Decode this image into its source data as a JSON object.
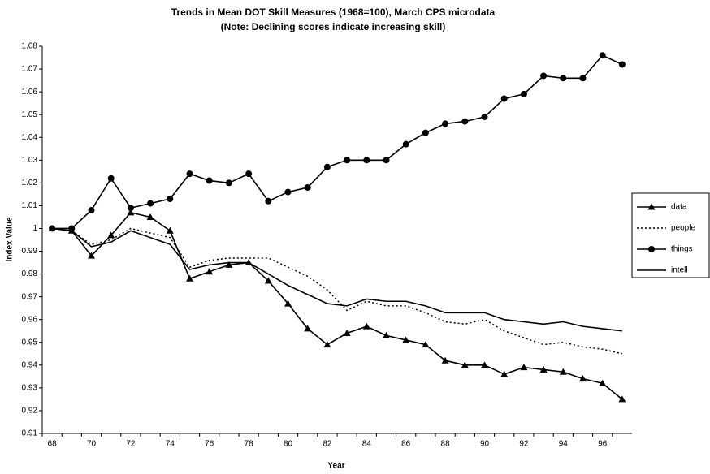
{
  "chart_data": {
    "type": "line",
    "title": "Trends in Mean DOT Skill Measures (1968=100), March CPS microdata",
    "subtitle": "(Note: Declining scores indicate increasing skill)",
    "y_label": "Index Value",
    "x_label": "Year",
    "categories": [
      "68",
      null,
      "70",
      null,
      "72",
      null,
      "74",
      null,
      "76",
      null,
      "78",
      null,
      "80",
      null,
      "82",
      null,
      "84",
      null,
      "86",
      null,
      "88",
      null,
      "90",
      null,
      "92",
      null,
      "94",
      null,
      "96",
      null
    ],
    "series": [
      {
        "name": "data",
        "color": "#000000",
        "marker": "triangle",
        "dash": "solid",
        "values": [
          1.0,
          0.999,
          0.988,
          0.997,
          1.007,
          1.005,
          0.999,
          0.978,
          0.981,
          0.984,
          0.985,
          0.977,
          0.967,
          0.956,
          0.949,
          0.954,
          0.957,
          0.953,
          0.951,
          0.949,
          0.942,
          0.94,
          0.94,
          0.936,
          0.939,
          0.938,
          0.937,
          0.934,
          0.932,
          0.925
        ]
      },
      {
        "name": "people",
        "color": "#000000",
        "marker": "none",
        "dash": "dotted",
        "values": [
          1.0,
          0.999,
          0.993,
          0.995,
          1.0,
          0.998,
          0.996,
          0.983,
          0.986,
          0.987,
          0.987,
          0.987,
          0.983,
          0.979,
          0.973,
          0.964,
          0.968,
          0.966,
          0.966,
          0.963,
          0.959,
          0.958,
          0.96,
          0.955,
          0.952,
          0.949,
          0.95,
          0.948,
          0.947,
          0.945
        ]
      },
      {
        "name": "things",
        "color": "#000000",
        "marker": "circle",
        "dash": "solid",
        "values": [
          1.0,
          1.0,
          1.008,
          1.022,
          1.009,
          1.011,
          1.013,
          1.024,
          1.021,
          1.02,
          1.024,
          1.012,
          1.016,
          1.018,
          1.027,
          1.03,
          1.03,
          1.03,
          1.037,
          1.042,
          1.046,
          1.047,
          1.049,
          1.057,
          1.059,
          1.067,
          1.066,
          1.066,
          1.076,
          1.072
        ]
      },
      {
        "name": "intell",
        "color": "#000000",
        "marker": "none",
        "dash": "solid",
        "values": [
          1.0,
          0.999,
          0.992,
          0.994,
          0.999,
          0.996,
          0.993,
          0.982,
          0.984,
          0.985,
          0.985,
          0.98,
          0.975,
          0.971,
          0.967,
          0.966,
          0.969,
          0.968,
          0.968,
          0.966,
          0.963,
          0.963,
          0.963,
          0.96,
          0.959,
          0.958,
          0.959,
          0.957,
          0.956,
          0.955
        ]
      }
    ],
    "ylim": [
      0.91,
      1.08
    ],
    "yticks": [
      0.91,
      0.92,
      0.93,
      0.94,
      0.95,
      0.96,
      0.97,
      0.98,
      0.99,
      1,
      1.01,
      1.02,
      1.03,
      1.04,
      1.05,
      1.06,
      1.07,
      1.08
    ],
    "grid": false,
    "legend": "right"
  }
}
